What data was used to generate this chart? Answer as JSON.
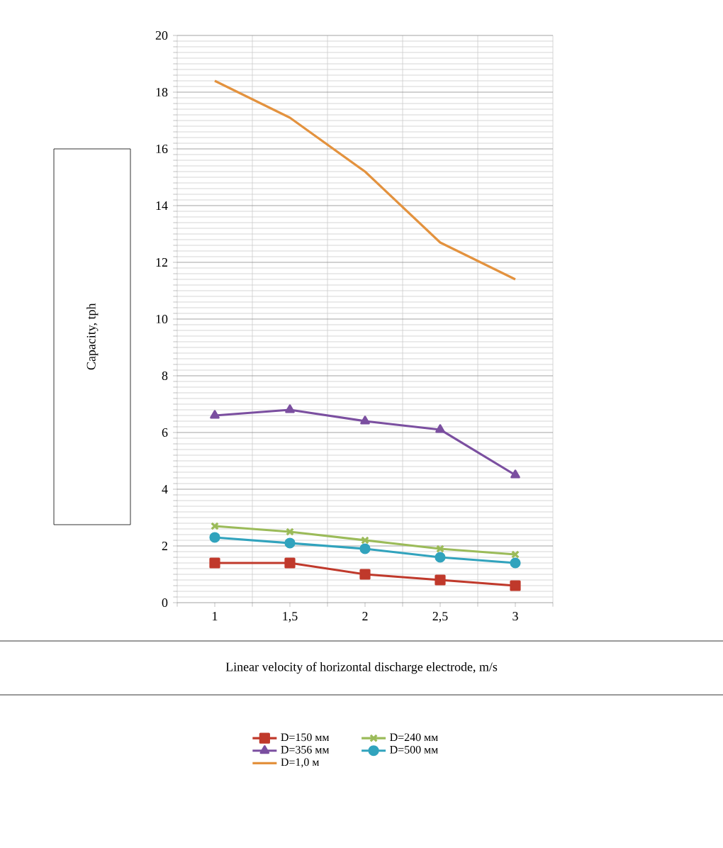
{
  "chart_data": {
    "type": "line",
    "xlabel": "Linear velocity of horizontal discharge electrode, m/s",
    "ylabel": "Capacity, tph",
    "categories": [
      "1",
      "1,5",
      "2",
      "2,5",
      "3"
    ],
    "ylim": [
      0,
      20
    ],
    "yticks": [
      0,
      2,
      4,
      6,
      8,
      10,
      12,
      14,
      16,
      18,
      20
    ],
    "grid": true,
    "legend": "bottom",
    "series": [
      {
        "name": "D=150 мм",
        "color": "#c0392b",
        "marker": "square",
        "values": [
          1.4,
          1.4,
          1.0,
          0.8,
          0.6
        ]
      },
      {
        "name": "D=240 мм",
        "color": "#9bbb59",
        "marker": "cross",
        "values": [
          2.7,
          2.5,
          2.2,
          1.9,
          1.7
        ]
      },
      {
        "name": "D=356 мм",
        "color": "#7b4fa0",
        "marker": "triangle",
        "values": [
          6.6,
          6.8,
          6.4,
          6.1,
          4.5
        ]
      },
      {
        "name": "D=500 мм",
        "color": "#31a3bd",
        "marker": "circle",
        "values": [
          2.3,
          2.1,
          1.9,
          1.6,
          1.4
        ]
      },
      {
        "name": "D=1,0 м",
        "color": "#e3923e",
        "marker": "none",
        "values": [
          18.4,
          17.1,
          15.2,
          12.7,
          11.4
        ]
      }
    ]
  }
}
